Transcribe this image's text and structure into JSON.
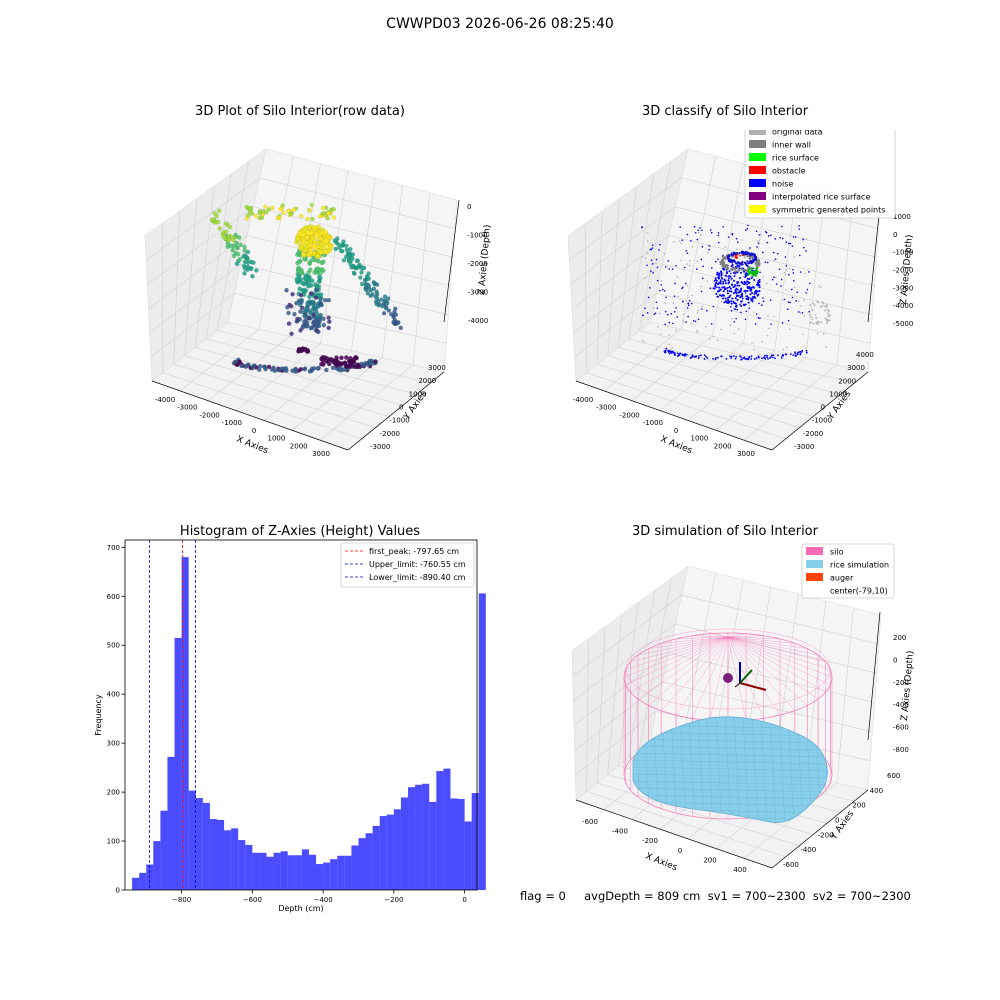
{
  "figure": {
    "suptitle": "CWWPD03 2026-06-26 08:25:40",
    "footer": "flag = 0     avgDepth = 809 cm  sv1 = 700~2300  sv2 = 700~2300"
  },
  "chart_data": [
    {
      "type": "scatter",
      "subtype": "3d",
      "title": "3D Plot of Silo Interior(row data)",
      "xlabel": "X Axies",
      "ylabel": "Y Axies",
      "zlabel": "Z Axies (Depth)",
      "x_ticks": [
        "-4000",
        "-3000",
        "-2000",
        "-1000",
        "0",
        "1000",
        "2000",
        "3000"
      ],
      "y_ticks": [
        "-3000",
        "-2000",
        "-1000",
        "0",
        "1000",
        "2000",
        "3000"
      ],
      "z_ticks": [
        "0",
        "-1000",
        "-2000",
        "-3000",
        "-4000"
      ],
      "colormap": "viridis",
      "grid": true
    },
    {
      "type": "scatter",
      "subtype": "3d",
      "title": "3D classify of Silo Interior",
      "xlabel": "X Axies",
      "ylabel": "Y Axies",
      "zlabel": "Z Axies (Depth)",
      "x_ticks": [
        "-4000",
        "-3000",
        "-2000",
        "-1000",
        "0",
        "1000",
        "2000",
        "3000"
      ],
      "y_ticks": [
        "-3000",
        "-2000",
        "-1000",
        "0",
        "1000",
        "2000",
        "3000",
        "4000"
      ],
      "z_ticks": [
        "1000",
        "0",
        "-1000",
        "-2000",
        "-3000",
        "-4000",
        "-5000"
      ],
      "legend": [
        {
          "label": "original data",
          "color": "#b0b0b0"
        },
        {
          "label": "inner wall",
          "color": "#808080"
        },
        {
          "label": "rice surface",
          "color": "#00ff00"
        },
        {
          "label": "obstacle",
          "color": "#ff0000"
        },
        {
          "label": "noise",
          "color": "#0000ff"
        },
        {
          "label": "interpolated rice surface",
          "color": "#800080"
        },
        {
          "label": "symmetric generated points",
          "color": "#ffff00"
        }
      ],
      "legend_position": "top-right",
      "grid": true
    },
    {
      "type": "bar",
      "subtype": "histogram",
      "title": "Histogram of Z-Axies (Height) Values",
      "xlabel": "Depth (cm)",
      "ylabel": "Frequency",
      "xlim": [
        -960,
        35
      ],
      "ylim": [
        0,
        715
      ],
      "x_ticks": [
        -800,
        -600,
        -400,
        -200,
        0
      ],
      "x_tick_labels": [
        "−800",
        "−600",
        "−400",
        "−200",
        "0"
      ],
      "y_ticks": [
        0,
        100,
        200,
        300,
        400,
        500,
        600,
        700
      ],
      "bin_start": -940,
      "bin_width": 20,
      "values": [
        25,
        35,
        52,
        100,
        162,
        272,
        515,
        680,
        203,
        188,
        178,
        145,
        143,
        122,
        126,
        102,
        92,
        76,
        76,
        68,
        76,
        79,
        71,
        71,
        83,
        72,
        53,
        56,
        63,
        70,
        70,
        91,
        106,
        116,
        131,
        151,
        154,
        165,
        189,
        210,
        215,
        217,
        180,
        243,
        248,
        187,
        186,
        140,
        198,
        606
      ],
      "bar_color": "#0000ff",
      "vlines": [
        {
          "label": "first_peak: -797.65 cm",
          "x": -797.65,
          "color": "#ff0000"
        },
        {
          "label": "Upper_limit: -760.55 cm",
          "x": -760.55,
          "color": "#0000cc"
        },
        {
          "label": "Lower_limit: -890.40 cm",
          "x": -890.4,
          "color": "#0000cc"
        }
      ],
      "legend_position": "top-right",
      "grid": false
    },
    {
      "type": "scatter",
      "subtype": "3d-surface",
      "title": "3D simulation of Silo Interior",
      "xlabel": "X Axies",
      "ylabel": "Y Axies",
      "zlabel": "Z Axies (Depth)",
      "x_ticks": [
        "-600",
        "-400",
        "-200",
        "0",
        "200",
        "400"
      ],
      "y_ticks": [
        "-600",
        "-400",
        "-200",
        "0",
        "200",
        "400",
        "600"
      ],
      "z_ticks": [
        "200",
        "0",
        "-200",
        "-400",
        "-600",
        "-800"
      ],
      "legend": [
        {
          "label": "silo",
          "color": "#ff69b4"
        },
        {
          "label": "rice simulation",
          "color": "#87ceeb"
        },
        {
          "label": "auger",
          "color": "#ff4500"
        },
        {
          "label": "center(-79,10)",
          "color": ""
        }
      ],
      "legend_position": "top-right",
      "grid": true
    }
  ]
}
